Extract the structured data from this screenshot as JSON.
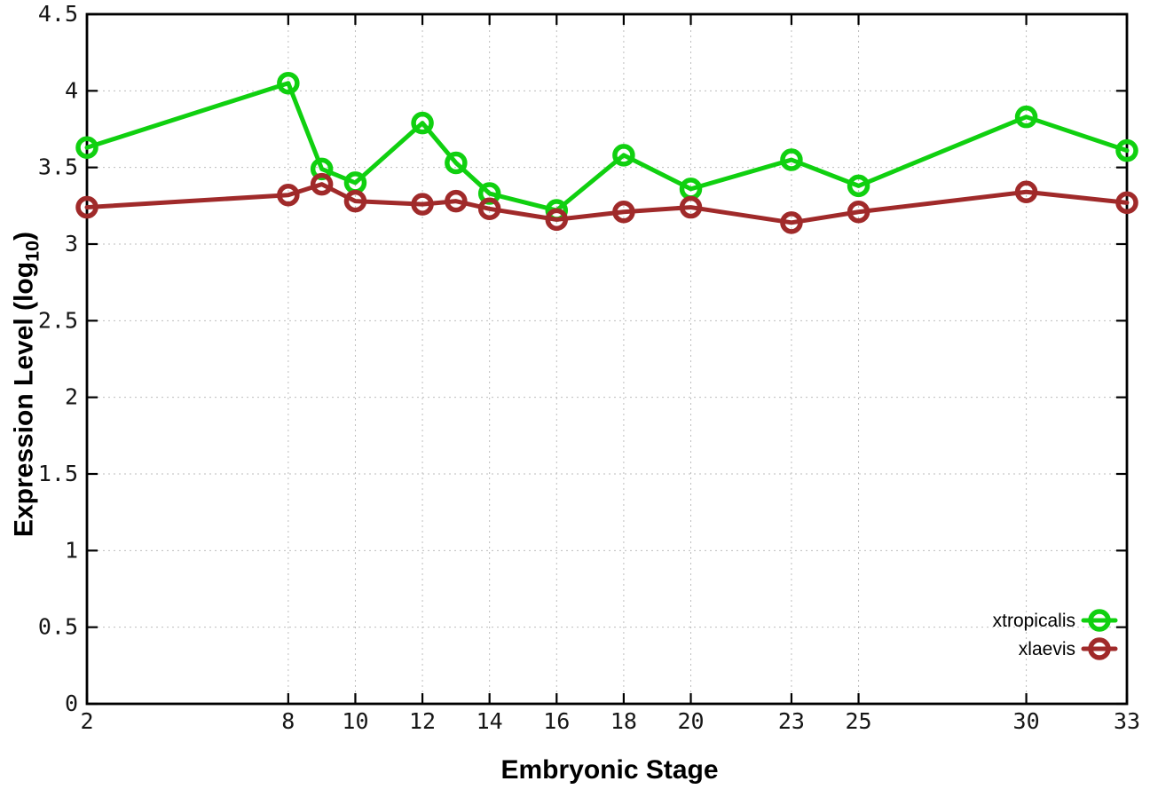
{
  "chart_data": {
    "type": "line",
    "title": "",
    "xlabel": "Embryonic Stage",
    "ylabel": "Expression Level (log10)",
    "ylabel_parts": {
      "prefix": "Expression Level (log",
      "subscript": "10",
      "suffix": ")"
    },
    "xlim": [
      2,
      33
    ],
    "ylim": [
      0,
      4.5
    ],
    "x_tick_values": [
      2,
      8,
      10,
      12,
      14,
      16,
      18,
      20,
      23,
      25,
      30,
      33
    ],
    "x_tick_labels": [
      "2",
      "8",
      "10",
      "12",
      "14",
      "16",
      "18",
      "20",
      "23",
      "25",
      "30",
      "33"
    ],
    "y_tick_values": [
      0,
      0.5,
      1,
      1.5,
      2,
      2.5,
      3,
      3.5,
      4,
      4.5
    ],
    "y_tick_labels": [
      "0",
      "0.5",
      "1",
      "1.5",
      "2",
      "2.5",
      "3",
      "3.5",
      "4",
      "4.5"
    ],
    "grid": true,
    "legend_position": "inside-bottom-right",
    "marker": "open-circle",
    "x": [
      2,
      8,
      9,
      10,
      12,
      13,
      14,
      16,
      18,
      20,
      23,
      25,
      30,
      33
    ],
    "series": [
      {
        "name": "xtropicalis",
        "color": "#10d010",
        "values": [
          3.63,
          4.05,
          3.49,
          3.4,
          3.79,
          3.53,
          3.33,
          3.22,
          3.58,
          3.36,
          3.55,
          3.38,
          3.83,
          3.61
        ]
      },
      {
        "name": "xlaevis",
        "color": "#a02a2a",
        "values": [
          3.24,
          3.32,
          3.39,
          3.28,
          3.26,
          3.28,
          3.23,
          3.16,
          3.21,
          3.24,
          3.14,
          3.21,
          3.34,
          3.27
        ]
      }
    ],
    "styles": {
      "background": "#ffffff",
      "grid_color": "#bdbdbd",
      "border_color": "#000000",
      "tick_label_color": "#161616",
      "axis_title_color": "#000000",
      "legend_text_color": "#000000"
    }
  }
}
